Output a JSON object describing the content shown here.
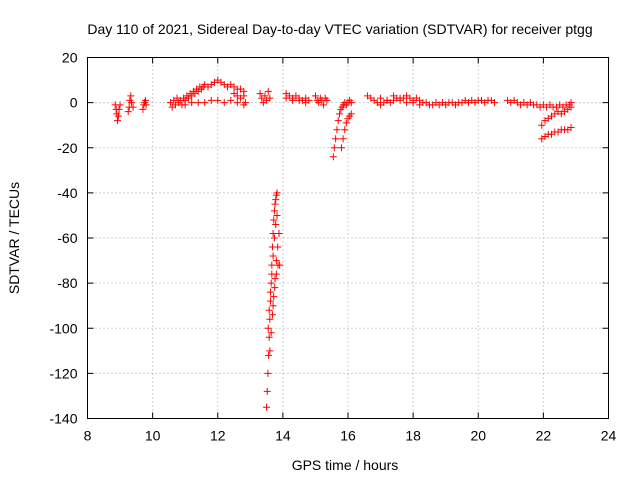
{
  "chart_data": {
    "type": "scatter",
    "title": "Day 110 of 2021, Sidereal Day-to-day VTEC variation (SDTVAR) for receiver ptgg",
    "xlabel": "GPS time / hours",
    "ylabel": "SDTVAR / TECUs",
    "xlim": [
      8,
      24
    ],
    "ylim": [
      -140,
      20
    ],
    "xticks": [
      8,
      10,
      12,
      14,
      16,
      18,
      20,
      22,
      24
    ],
    "yticks": [
      20,
      0,
      -20,
      -40,
      -60,
      -80,
      -100,
      -120,
      -140
    ],
    "grid": true,
    "marker": "plus",
    "color": "#ff0000",
    "series": [
      {
        "name": "SDTVAR",
        "points": [
          [
            8.85,
            -1
          ],
          [
            8.88,
            -3
          ],
          [
            8.9,
            -5
          ],
          [
            8.92,
            -8
          ],
          [
            8.95,
            -6
          ],
          [
            8.97,
            -3
          ],
          [
            9.0,
            -1
          ],
          [
            9.25,
            -4
          ],
          [
            9.28,
            -2
          ],
          [
            9.3,
            1
          ],
          [
            9.33,
            3
          ],
          [
            9.35,
            0
          ],
          [
            9.4,
            -2
          ],
          [
            9.7,
            -3
          ],
          [
            9.73,
            -1
          ],
          [
            9.75,
            0
          ],
          [
            9.78,
            1
          ],
          [
            9.8,
            -1
          ],
          [
            10.55,
            0
          ],
          [
            10.6,
            -2
          ],
          [
            10.65,
            1
          ],
          [
            10.7,
            -1
          ],
          [
            10.75,
            2
          ],
          [
            10.8,
            0
          ],
          [
            10.85,
            1
          ],
          [
            10.9,
            -1
          ],
          [
            10.95,
            2
          ],
          [
            11.0,
            1
          ],
          [
            11.05,
            3
          ],
          [
            11.1,
            2
          ],
          [
            11.15,
            4
          ],
          [
            11.2,
            3
          ],
          [
            11.25,
            5
          ],
          [
            11.3,
            4
          ],
          [
            11.35,
            6
          ],
          [
            11.4,
            5
          ],
          [
            11.45,
            7
          ],
          [
            11.5,
            6
          ],
          [
            11.55,
            7
          ],
          [
            11.6,
            8
          ],
          [
            11.7,
            7
          ],
          [
            11.8,
            8
          ],
          [
            11.9,
            9
          ],
          [
            12.0,
            10
          ],
          [
            12.1,
            9
          ],
          [
            12.2,
            8
          ],
          [
            12.3,
            7
          ],
          [
            12.4,
            8
          ],
          [
            12.5,
            7
          ],
          [
            12.6,
            6
          ],
          [
            12.7,
            6
          ],
          [
            12.8,
            5
          ],
          [
            11.0,
            -1
          ],
          [
            11.2,
            0
          ],
          [
            11.4,
            0
          ],
          [
            11.6,
            0
          ],
          [
            11.8,
            1
          ],
          [
            12.0,
            1
          ],
          [
            12.2,
            0
          ],
          [
            12.4,
            1
          ],
          [
            12.6,
            0
          ],
          [
            12.8,
            -1
          ],
          [
            12.85,
            0
          ],
          [
            12.5,
            4
          ],
          [
            12.6,
            3
          ],
          [
            12.7,
            2
          ],
          [
            12.8,
            3
          ],
          [
            13.3,
            4
          ],
          [
            13.35,
            2
          ],
          [
            13.4,
            0
          ],
          [
            13.45,
            3
          ],
          [
            13.5,
            1
          ],
          [
            13.55,
            5
          ],
          [
            13.6,
            2
          ],
          [
            13.5,
            -135
          ],
          [
            13.52,
            -128
          ],
          [
            13.54,
            -120
          ],
          [
            13.56,
            -112
          ],
          [
            13.58,
            -104
          ],
          [
            13.6,
            -96
          ],
          [
            13.62,
            -88
          ],
          [
            13.64,
            -80
          ],
          [
            13.66,
            -72
          ],
          [
            13.68,
            -64
          ],
          [
            13.7,
            -58
          ],
          [
            13.72,
            -52
          ],
          [
            13.74,
            -48
          ],
          [
            13.76,
            -45
          ],
          [
            13.78,
            -43
          ],
          [
            13.8,
            -41
          ],
          [
            13.82,
            -40
          ],
          [
            13.55,
            -100
          ],
          [
            13.58,
            -92
          ],
          [
            13.62,
            -84
          ],
          [
            13.66,
            -76
          ],
          [
            13.7,
            -68
          ],
          [
            13.74,
            -60
          ],
          [
            13.78,
            -54
          ],
          [
            13.82,
            -50
          ],
          [
            13.6,
            -110
          ],
          [
            13.64,
            -102
          ],
          [
            13.68,
            -94
          ],
          [
            13.72,
            -86
          ],
          [
            13.76,
            -78
          ],
          [
            13.8,
            -70
          ],
          [
            13.84,
            -64
          ],
          [
            13.88,
            -58
          ],
          [
            13.7,
            -90
          ],
          [
            13.75,
            -82
          ],
          [
            13.8,
            -76
          ],
          [
            13.85,
            -72
          ],
          [
            13.9,
            -72
          ],
          [
            14.1,
            4
          ],
          [
            14.2,
            3
          ],
          [
            14.3,
            2
          ],
          [
            14.4,
            3
          ],
          [
            14.5,
            2
          ],
          [
            14.6,
            1
          ],
          [
            14.7,
            2
          ],
          [
            14.8,
            1
          ],
          [
            14.1,
            2
          ],
          [
            14.3,
            1
          ],
          [
            14.5,
            1
          ],
          [
            14.7,
            0
          ],
          [
            15.0,
            3
          ],
          [
            15.05,
            1
          ],
          [
            15.1,
            0
          ],
          [
            15.15,
            2
          ],
          [
            15.2,
            1
          ],
          [
            15.25,
            -1
          ],
          [
            15.3,
            2
          ],
          [
            15.35,
            1
          ],
          [
            15.55,
            -24
          ],
          [
            15.58,
            -20
          ],
          [
            15.62,
            -16
          ],
          [
            15.66,
            -12
          ],
          [
            15.7,
            -8
          ],
          [
            15.74,
            -5
          ],
          [
            15.78,
            -3
          ],
          [
            15.82,
            -2
          ],
          [
            15.86,
            -1
          ],
          [
            15.9,
            0
          ],
          [
            15.95,
            -1
          ],
          [
            16.0,
            0
          ],
          [
            16.05,
            1
          ],
          [
            16.1,
            0
          ],
          [
            15.8,
            -20
          ],
          [
            15.85,
            -16
          ],
          [
            15.9,
            -12
          ],
          [
            15.95,
            -9
          ],
          [
            16.0,
            -7
          ],
          [
            16.05,
            -6
          ],
          [
            16.1,
            -5
          ],
          [
            16.6,
            3
          ],
          [
            16.7,
            2
          ],
          [
            16.8,
            1
          ],
          [
            16.9,
            0
          ],
          [
            17.0,
            -1
          ],
          [
            17.1,
            0
          ],
          [
            17.2,
            1
          ],
          [
            17.3,
            0
          ],
          [
            17.4,
            1
          ],
          [
            17.5,
            2
          ],
          [
            17.6,
            1
          ],
          [
            17.7,
            2
          ],
          [
            17.8,
            3
          ],
          [
            17.9,
            2
          ],
          [
            18.0,
            1
          ],
          [
            18.1,
            2
          ],
          [
            18.2,
            1
          ],
          [
            18.3,
            0
          ],
          [
            17.0,
            2
          ],
          [
            17.2,
            1
          ],
          [
            17.4,
            3
          ],
          [
            17.6,
            2
          ],
          [
            17.8,
            0
          ],
          [
            18.0,
            0
          ],
          [
            18.2,
            -1
          ],
          [
            18.4,
            0
          ],
          [
            18.5,
            -1
          ],
          [
            18.6,
            -1
          ],
          [
            18.7,
            0
          ],
          [
            18.8,
            -1
          ],
          [
            18.9,
            0
          ],
          [
            19.0,
            -1
          ],
          [
            19.1,
            0
          ],
          [
            19.2,
            0
          ],
          [
            19.3,
            -1
          ],
          [
            19.4,
            0
          ],
          [
            19.5,
            0
          ],
          [
            19.6,
            1
          ],
          [
            19.7,
            0
          ],
          [
            19.8,
            1
          ],
          [
            19.9,
            0
          ],
          [
            20.0,
            1
          ],
          [
            20.1,
            1
          ],
          [
            20.2,
            0
          ],
          [
            20.3,
            1
          ],
          [
            20.4,
            1
          ],
          [
            20.5,
            0
          ],
          [
            20.9,
            1
          ],
          [
            21.0,
            0
          ],
          [
            21.1,
            1
          ],
          [
            21.2,
            0
          ],
          [
            21.3,
            -1
          ],
          [
            21.4,
            0
          ],
          [
            21.5,
            -1
          ],
          [
            21.6,
            0
          ],
          [
            21.7,
            -1
          ],
          [
            21.8,
            -1
          ],
          [
            21.9,
            -2
          ],
          [
            22.0,
            -1
          ],
          [
            22.1,
            -2
          ],
          [
            22.2,
            -1
          ],
          [
            22.3,
            -2
          ],
          [
            22.4,
            -2
          ],
          [
            22.5,
            -1
          ],
          [
            22.6,
            -2
          ],
          [
            22.7,
            -1
          ],
          [
            22.8,
            -1
          ],
          [
            22.85,
            0
          ],
          [
            21.95,
            -10
          ],
          [
            22.05,
            -8
          ],
          [
            22.15,
            -7
          ],
          [
            22.25,
            -6
          ],
          [
            22.35,
            -5
          ],
          [
            22.45,
            -4
          ],
          [
            22.55,
            -5
          ],
          [
            22.65,
            -4
          ],
          [
            22.75,
            -3
          ],
          [
            22.85,
            -2
          ],
          [
            21.95,
            -16
          ],
          [
            22.05,
            -15
          ],
          [
            22.15,
            -14
          ],
          [
            22.25,
            -14
          ],
          [
            22.35,
            -13
          ],
          [
            22.45,
            -13
          ],
          [
            22.55,
            -12
          ],
          [
            22.65,
            -12
          ],
          [
            22.75,
            -12
          ],
          [
            22.85,
            -11
          ]
        ]
      }
    ]
  }
}
